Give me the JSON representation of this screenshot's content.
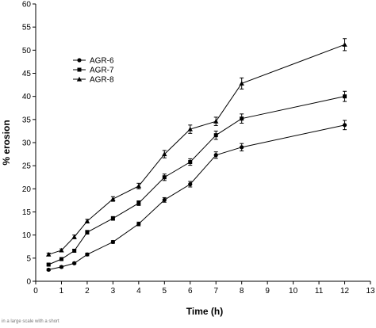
{
  "chart_data": {
    "type": "line",
    "title": "",
    "xlabel": "Time (h)",
    "ylabel": "% erosion",
    "xlim": [
      0,
      13
    ],
    "ylim": [
      0,
      60
    ],
    "x_ticks": [
      0,
      1,
      2,
      3,
      4,
      5,
      6,
      7,
      8,
      9,
      10,
      11,
      12,
      13
    ],
    "y_ticks": [
      0,
      5,
      10,
      15,
      20,
      25,
      30,
      35,
      40,
      45,
      50,
      55,
      60
    ],
    "grid": false,
    "legend_position": "upper-left",
    "x": [
      0.5,
      1,
      1.5,
      2,
      3,
      4,
      5,
      6,
      7,
      8,
      12
    ],
    "series": [
      {
        "name": "AGR-6",
        "marker": "circle",
        "values": [
          2.5,
          3.1,
          3.9,
          5.8,
          8.5,
          12.4,
          17.6,
          21.0,
          27.3,
          29.0,
          33.8
        ],
        "errors": [
          0.2,
          0.2,
          0.2,
          0.3,
          0.3,
          0.4,
          0.5,
          0.6,
          0.7,
          0.8,
          1.0
        ]
      },
      {
        "name": "AGR-7",
        "marker": "square",
        "values": [
          3.6,
          4.8,
          6.6,
          10.6,
          13.6,
          16.9,
          22.5,
          25.8,
          31.6,
          35.2,
          40.0
        ],
        "errors": [
          0.2,
          0.2,
          0.3,
          0.4,
          0.4,
          0.5,
          0.7,
          0.7,
          0.9,
          1.0,
          1.1
        ]
      },
      {
        "name": "AGR-8",
        "marker": "triangle",
        "values": [
          5.8,
          6.7,
          9.6,
          13.0,
          17.8,
          20.6,
          27.5,
          32.9,
          34.6,
          42.8,
          51.2
        ],
        "errors": [
          0.3,
          0.3,
          0.4,
          0.4,
          0.5,
          0.6,
          0.8,
          0.9,
          0.9,
          1.2,
          1.3
        ]
      }
    ],
    "footnote": "in a large scale with a short"
  }
}
